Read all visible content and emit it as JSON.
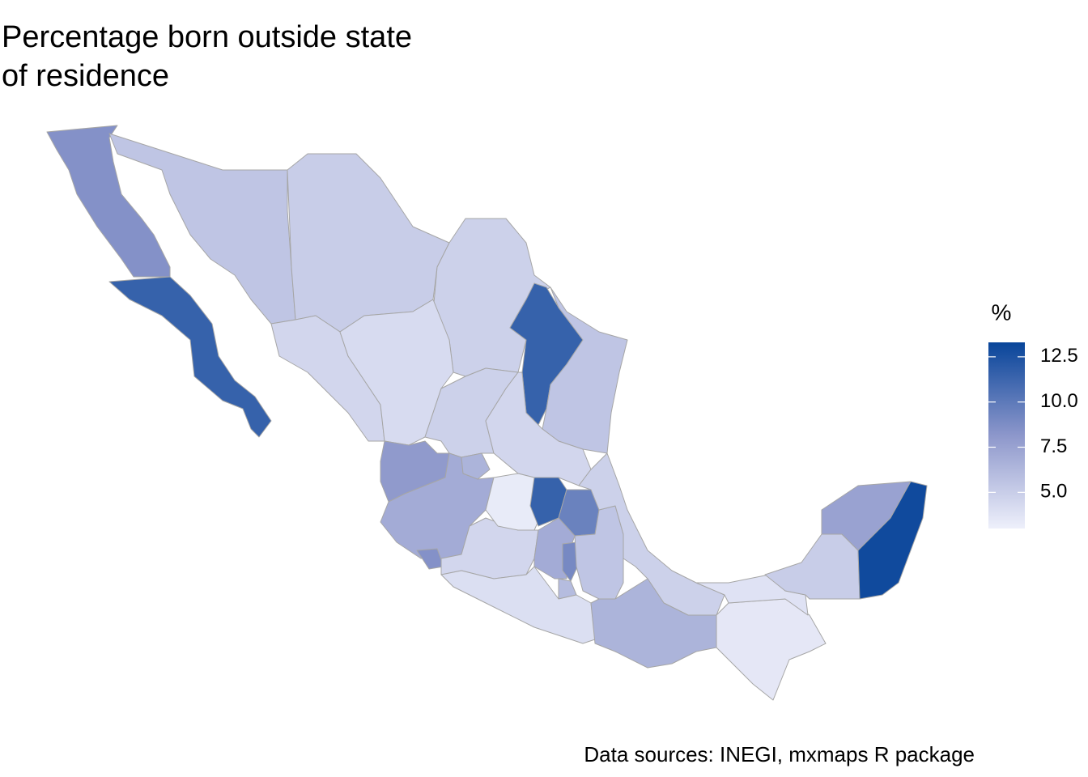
{
  "chart_data": {
    "type": "choropleth",
    "title": "Percentage born outside state of residence",
    "caption": "Data sources: INEGI, mxmaps R package",
    "legend_title": "%",
    "colorlim": [
      3.0,
      13.3
    ],
    "colorticks": [
      {
        "value": 5,
        "label": "5.0"
      },
      {
        "value": 7.5,
        "label": "7.5"
      },
      {
        "value": 10,
        "label": "10.0"
      },
      {
        "value": 12.5,
        "label": "12.5"
      }
    ],
    "colors": [
      "#eef0fb",
      "#8d97cb",
      "#08459a"
    ],
    "border_color": "#a6a6a6",
    "values": [
      8.5,
      11.5,
      5.5,
      5.0,
      4.8,
      11.5,
      5.5,
      4.5,
      4.2,
      4.8,
      4.5,
      8.0,
      7.0,
      6.5,
      8.5,
      4.5,
      3.3,
      11.5,
      9.5,
      7.0,
      9.0,
      6.0,
      6.0,
      5.5,
      4.8,
      4.0,
      6.5,
      3.5,
      3.8,
      5.0,
      7.5,
      13.0
    ]
  }
}
